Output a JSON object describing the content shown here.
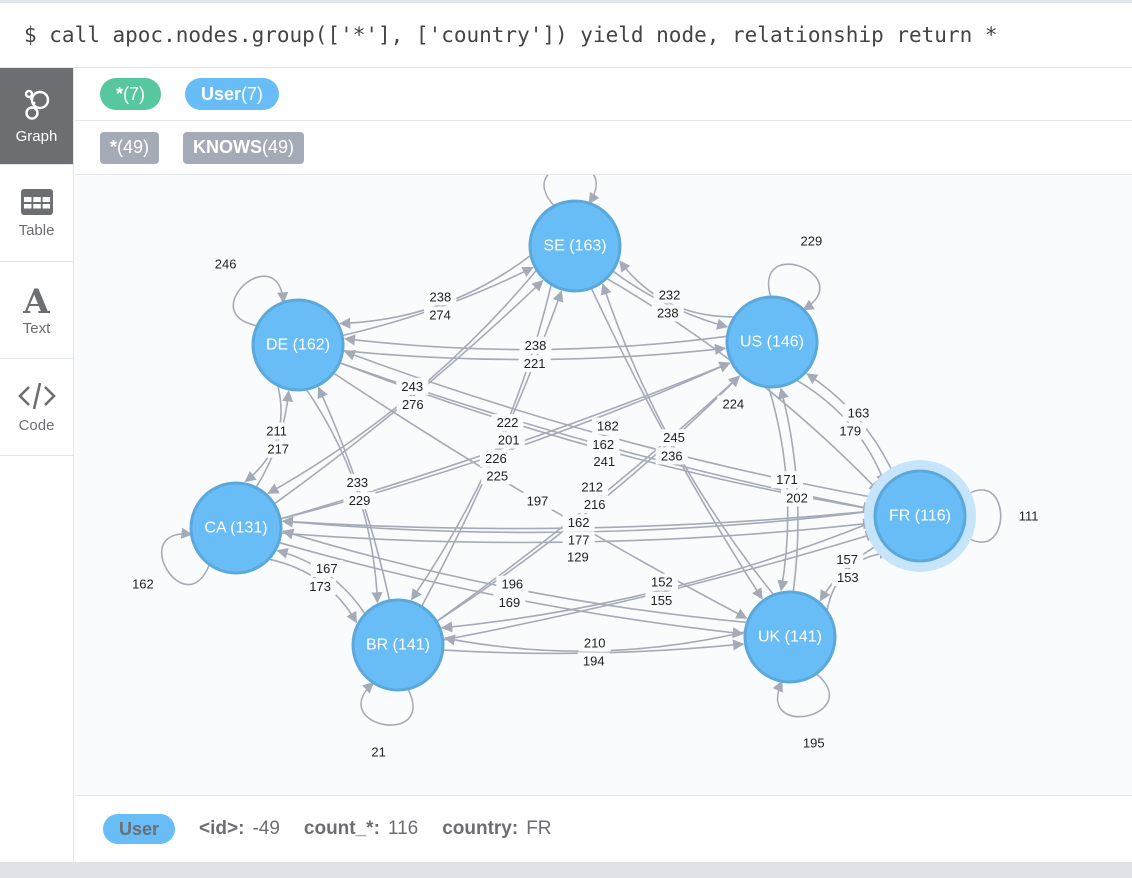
{
  "query": "$ call apoc.nodes.group(['*'], ['country']) yield node, relationship return *",
  "sidebar": {
    "items": [
      {
        "label": "Graph",
        "icon": "graph-icon",
        "active": true
      },
      {
        "label": "Table",
        "icon": "table-icon"
      },
      {
        "label": "Text",
        "icon": "text-icon"
      },
      {
        "label": "Code",
        "icon": "code-icon"
      }
    ]
  },
  "node_labels": [
    {
      "name": "*",
      "count": "(7)",
      "color": "#57c7a0"
    },
    {
      "name": "User",
      "count": "(7)",
      "color": "#68bdf6"
    }
  ],
  "relationship_types": [
    {
      "name": "*",
      "count": "(49)"
    },
    {
      "name": "KNOWS",
      "count": "(49)"
    }
  ],
  "colors": {
    "node_fill": "#68bdf6",
    "node_stroke": "#5ca8db",
    "edge": "#a5abb6",
    "selected_halo": "#c6e5fb"
  },
  "graph": {
    "nodes": [
      {
        "id": "SE",
        "caption": "SE (163)"
      },
      {
        "id": "DE",
        "caption": "DE (162)"
      },
      {
        "id": "US",
        "caption": "US (146)"
      },
      {
        "id": "CA",
        "caption": "CA (131)"
      },
      {
        "id": "FR",
        "caption": "FR (116)",
        "selected": true
      },
      {
        "id": "BR",
        "caption": "BR (141)"
      },
      {
        "id": "UK",
        "caption": "UK (141)"
      }
    ],
    "edges": [
      {
        "from": "DE",
        "to": "DE",
        "label": "246"
      },
      {
        "from": "US",
        "to": "US",
        "label": "229"
      },
      {
        "from": "CA",
        "to": "CA",
        "label": "162"
      },
      {
        "from": "FR",
        "to": "FR",
        "label": "111"
      },
      {
        "from": "BR",
        "to": "BR",
        "label": "21"
      },
      {
        "from": "UK",
        "to": "UK",
        "label": "195"
      },
      {
        "from": "SE",
        "to": "SE",
        "label": ""
      },
      {
        "from": "DE",
        "to": "SE",
        "label": "274"
      },
      {
        "from": "CA",
        "to": "SE",
        "label": "276"
      },
      {
        "from": "US",
        "to": "DE",
        "label": "238"
      },
      {
        "from": "SE",
        "to": "CA",
        "label": "243"
      },
      {
        "from": "CA",
        "to": "DE",
        "label": "217"
      },
      {
        "from": "DE",
        "to": "CA",
        "label": "211"
      },
      {
        "from": "BR",
        "to": "DE",
        "label": "229"
      },
      {
        "from": "DE",
        "to": "BR",
        "label": "233"
      },
      {
        "from": "CA",
        "to": "US",
        "label": "222"
      },
      {
        "from": "BR",
        "to": "SE",
        "label": "225"
      },
      {
        "from": "CA",
        "to": "US",
        "label": "201"
      },
      {
        "from": "DE",
        "to": "US",
        "label": "221"
      },
      {
        "from": "FR",
        "to": "DE",
        "label": "182"
      },
      {
        "from": "SE",
        "to": "US",
        "label": "238"
      },
      {
        "from": "US",
        "to": "SE",
        "label": "232"
      },
      {
        "from": "SE",
        "to": "UK",
        "label": "236"
      },
      {
        "from": "UK",
        "to": "SE",
        "label": "245"
      },
      {
        "from": "DE",
        "to": "FR",
        "label": "241"
      },
      {
        "from": "SE",
        "to": "FR",
        "label": "224"
      },
      {
        "from": "US",
        "to": "UK",
        "label": "171"
      },
      {
        "from": "UK",
        "to": "US",
        "label": "202"
      },
      {
        "from": "US",
        "to": "FR",
        "label": "179"
      },
      {
        "from": "FR",
        "to": "US",
        "label": "163"
      },
      {
        "from": "BR",
        "to": "US",
        "label": "212"
      },
      {
        "from": "FR",
        "to": "CA",
        "label": "162"
      },
      {
        "from": "FR",
        "to": "CA",
        "label": "177"
      },
      {
        "from": "BR",
        "to": "US",
        "label": "216"
      },
      {
        "from": "SE",
        "to": "BR",
        "label": "226"
      },
      {
        "from": "DE",
        "to": "UK",
        "label": "197"
      },
      {
        "from": "UK",
        "to": "CA",
        "label": "196"
      },
      {
        "from": "BR",
        "to": "FR",
        "label": "155"
      },
      {
        "from": "CA",
        "to": "FR",
        "label": "129"
      },
      {
        "from": "FR",
        "to": "UK",
        "label": "157"
      },
      {
        "from": "UK",
        "to": "FR",
        "label": "153"
      },
      {
        "from": "CA",
        "to": "BR",
        "label": "173"
      },
      {
        "from": "BR",
        "to": "CA",
        "label": "167"
      },
      {
        "from": "BR",
        "to": "UK",
        "label": "194"
      },
      {
        "from": "CA",
        "to": "UK",
        "label": "169"
      },
      {
        "from": "FR",
        "to": "BR",
        "label": "152"
      },
      {
        "from": "UK",
        "to": "BR",
        "label": "210"
      },
      {
        "from": "DE",
        "to": "FR",
        "label": "162"
      },
      {
        "from": "SE",
        "to": "DE",
        "label": "238"
      }
    ]
  },
  "details": {
    "label": "User",
    "props": [
      {
        "key": "<id>:",
        "value": "-49"
      },
      {
        "key": "count_*:",
        "value": "116"
      },
      {
        "key": "country:",
        "value": "FR"
      }
    ]
  }
}
